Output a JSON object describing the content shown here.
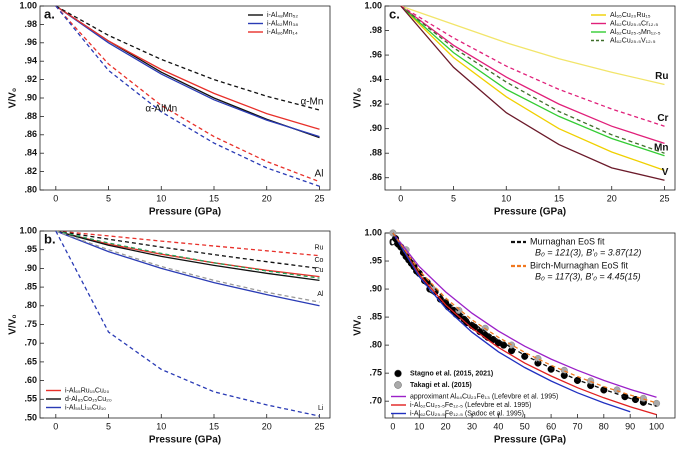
{
  "chart_data": [
    {
      "type": "line",
      "panel": "a.",
      "xlabel": "Pressure (GPa)",
      "ylabel": "V/V₀",
      "legend": "upper right",
      "xlim": [
        -1.5,
        26
      ],
      "ylim": [
        0.8,
        1.0
      ],
      "xticks": [
        0,
        5,
        10,
        15,
        20,
        25
      ],
      "yticks": [
        {
          "value": 0.8,
          "label": ".80"
        },
        {
          "value": 0.82,
          "label": ".82"
        },
        {
          "value": 0.84,
          "label": ".84"
        },
        {
          "value": 0.86,
          "label": ".86"
        },
        {
          "value": 0.88,
          "label": ".88"
        },
        {
          "value": 0.9,
          "label": ".90"
        },
        {
          "value": 0.92,
          "label": ".92"
        },
        {
          "value": 0.94,
          "label": ".94"
        },
        {
          "value": 0.96,
          "label": ".96"
        },
        {
          "value": 0.98,
          "label": ".98"
        },
        {
          "value": 1.0,
          "label": "1.00"
        }
      ],
      "x": [
        0,
        5,
        10,
        15,
        20,
        25
      ],
      "series": [
        {
          "name": "i-Al₄₈Mn₅₂",
          "color": "#111111",
          "line_style": "solid",
          "values": [
            1.0,
            0.962,
            0.928,
            0.9,
            0.877,
            0.857
          ]
        },
        {
          "name": "i-Al₆₂Mn₃₈",
          "color": "#2a3bb5",
          "line_style": "solid",
          "values": [
            1.0,
            0.96,
            0.926,
            0.898,
            0.876,
            0.858
          ]
        },
        {
          "name": "i-Al₈₆Mn₁₄",
          "color": "#e8302a",
          "line_style": "solid",
          "values": [
            1.0,
            0.962,
            0.931,
            0.905,
            0.883,
            0.866
          ]
        },
        {
          "label": "α-Mn",
          "color": "#111111",
          "line_style": "dashed",
          "values": [
            1.0,
            0.968,
            0.942,
            0.92,
            0.902,
            0.887
          ]
        },
        {
          "label": "Al",
          "color": "#e8302a",
          "line_style": "dashed",
          "values": [
            1.0,
            0.937,
            0.892,
            0.858,
            0.831,
            0.809
          ]
        },
        {
          "label": "α-AlMn",
          "color": "#2a3bb5",
          "line_style": "dashed",
          "values": [
            1.0,
            0.93,
            0.885,
            0.851,
            0.824,
            0.804
          ]
        }
      ]
    },
    {
      "type": "line",
      "panel": "b.",
      "xlabel": "Pressure (GPa)",
      "ylabel": "V/V₀",
      "legend": "lower left",
      "xlim": [
        -1.5,
        26
      ],
      "ylim": [
        0.5,
        1.0
      ],
      "xticks": [
        0,
        5,
        10,
        15,
        20,
        25
      ],
      "yticks": [
        {
          "value": 0.5,
          "label": ".50"
        },
        {
          "value": 0.55,
          "label": ".55"
        },
        {
          "value": 0.6,
          "label": ".60"
        },
        {
          "value": 0.65,
          "label": ".65"
        },
        {
          "value": 0.7,
          "label": ".70"
        },
        {
          "value": 0.75,
          "label": ".75"
        },
        {
          "value": 0.8,
          "label": ".80"
        },
        {
          "value": 0.85,
          "label": ".85"
        },
        {
          "value": 0.9,
          "label": ".90"
        },
        {
          "value": 0.95,
          "label": ".95"
        },
        {
          "value": 1.0,
          "label": "1.00"
        }
      ],
      "x": [
        0,
        5,
        10,
        15,
        20,
        25
      ],
      "series": [
        {
          "name": "i-Al₆₅Ru₁₅Cu₂₀",
          "color": "#e8302a",
          "line_style": "solid",
          "values": [
            1.0,
            0.965,
            0.938,
            0.915,
            0.895,
            0.878
          ]
        },
        {
          "name": "d-Al₆₅Co₁₅Cu₂₀",
          "color": "#111111",
          "line_style": "solid",
          "values": [
            1.0,
            0.962,
            0.932,
            0.908,
            0.887,
            0.868
          ]
        },
        {
          "name": "i-Al₅₅Li₃₅Cu₁₀",
          "color": "#2a3bb5",
          "line_style": "solid",
          "values": [
            1.0,
            0.945,
            0.9,
            0.862,
            0.83,
            0.8
          ]
        },
        {
          "label": "Ru",
          "color": "#e8302a",
          "line_style": "dashed",
          "values": [
            1.0,
            0.987,
            0.973,
            0.96,
            0.947,
            0.934
          ]
        },
        {
          "label": "Co",
          "color": "#111111",
          "line_style": "dashed",
          "values": [
            1.0,
            0.978,
            0.957,
            0.937,
            0.918,
            0.9
          ]
        },
        {
          "label": "Cu",
          "color": "#2aa05a",
          "line_style": "dashed",
          "values": [
            1.0,
            0.968,
            0.94,
            0.915,
            0.893,
            0.874
          ]
        },
        {
          "label": "Al",
          "color": "#999999",
          "line_style": "dashed",
          "values": [
            1.0,
            0.95,
            0.905,
            0.868,
            0.836,
            0.81
          ]
        },
        {
          "label": "Li",
          "color": "#2a3bb5",
          "line_style": "dashed",
          "values": [
            1.0,
            0.73,
            0.63,
            0.57,
            0.535,
            0.505
          ]
        }
      ]
    },
    {
      "type": "line",
      "panel": "c.",
      "xlabel": "Pressure (GPa)",
      "ylabel": "V/V₀",
      "legend": "upper right",
      "xlim": [
        -1.5,
        26
      ],
      "ylim": [
        0.85,
        1.0
      ],
      "xticks": [
        0,
        5,
        10,
        15,
        20,
        25
      ],
      "yticks": [
        {
          "value": 0.86,
          "label": ".86"
        },
        {
          "value": 0.88,
          "label": ".88"
        },
        {
          "value": 0.9,
          "label": ".90"
        },
        {
          "value": 0.92,
          "label": ".92"
        },
        {
          "value": 0.94,
          "label": ".94"
        },
        {
          "value": 0.96,
          "label": ".96"
        },
        {
          "value": 0.98,
          "label": ".98"
        },
        {
          "value": 1.0,
          "label": "1.00"
        }
      ],
      "x": [
        0,
        5,
        10,
        15,
        20,
        25
      ],
      "series": [
        {
          "name": "Al₆₅Cu₂₀Ru₁₅",
          "color": "#f0d000",
          "line_style": "solid",
          "values": [
            1.0,
            0.958,
            0.926,
            0.9,
            0.881,
            0.866
          ]
        },
        {
          "name": "Al₆₂Cu₂₅.₅Cr₁₂.₅",
          "color": "#e0207a",
          "line_style": "solid",
          "values": [
            1.0,
            0.968,
            0.942,
            0.92,
            0.902,
            0.888
          ]
        },
        {
          "name": "Al₆₂Cu₂₅.₅Mn₁₂.₅",
          "color": "#33cc33",
          "line_style": "solid",
          "label": "Mn",
          "values": [
            1.0,
            0.962,
            0.932,
            0.91,
            0.892,
            0.878
          ]
        },
        {
          "name": "Al₆₂Cu₂₅.₅V₁₂.₅",
          "color": "#3f6e2a",
          "line_style": "dashed",
          "values": [
            1.0,
            0.966,
            0.938,
            0.914,
            0.895,
            0.88
          ]
        },
        {
          "label": "Ru",
          "color": "#f2e56a",
          "line_style": "solid",
          "values": [
            1.0,
            0.985,
            0.97,
            0.957,
            0.946,
            0.936
          ]
        },
        {
          "label": "Cr",
          "color": "#e0207a",
          "line_style": "dashed",
          "values": [
            1.0,
            0.974,
            0.951,
            0.932,
            0.916,
            0.902
          ]
        },
        {
          "label": "V",
          "color": "#6b1a2a",
          "line_style": "solid",
          "values": [
            1.0,
            0.95,
            0.913,
            0.887,
            0.868,
            0.858
          ]
        }
      ]
    },
    {
      "type": "line",
      "panel": "d.",
      "xlabel": "Pressure (GPa)",
      "ylabel": "V/V₀",
      "legend": "lower left",
      "xlim": [
        -3,
        107
      ],
      "ylim": [
        0.67,
        1.0
      ],
      "xticks": [
        0,
        10,
        20,
        30,
        40,
        50,
        60,
        70,
        80,
        90,
        100
      ],
      "yticks": [
        {
          "value": 0.7,
          "label": ".70"
        },
        {
          "value": 0.75,
          "label": ".75"
        },
        {
          "value": 0.8,
          "label": ".80"
        },
        {
          "value": 0.85,
          "label": ".85"
        },
        {
          "value": 0.9,
          "label": ".90"
        },
        {
          "value": 0.95,
          "label": ".95"
        },
        {
          "value": 1.0,
          "label": "1.00"
        }
      ],
      "x": [
        0,
        10,
        20,
        30,
        40,
        50,
        60,
        70,
        80,
        90,
        100
      ],
      "series": [
        {
          "type": "scatter",
          "name": "Stagno et al. (2015, 2021)",
          "color": "#000000",
          "x": [
            1,
            2,
            3,
            4,
            5,
            6,
            7,
            8,
            9,
            10,
            12,
            13,
            14,
            15,
            16,
            18,
            20,
            21,
            23,
            24,
            25,
            27,
            28,
            30,
            31,
            33,
            35,
            36,
            38,
            40,
            42,
            45,
            50,
            55,
            60,
            65,
            70,
            75,
            80,
            88,
            92,
            95
          ],
          "values": [
            0.99,
            0.98,
            0.975,
            0.965,
            0.958,
            0.952,
            0.946,
            0.94,
            0.932,
            0.928,
            0.915,
            0.912,
            0.9,
            0.898,
            0.895,
            0.882,
            0.875,
            0.868,
            0.862,
            0.855,
            0.852,
            0.846,
            0.84,
            0.835,
            0.832,
            0.824,
            0.818,
            0.814,
            0.81,
            0.804,
            0.8,
            0.79,
            0.78,
            0.768,
            0.757,
            0.746,
            0.737,
            0.728,
            0.72,
            0.708,
            0.703,
            0.698
          ]
        },
        {
          "type": "scatter",
          "name": "Takagi et al. (2015)",
          "color": "#aaaaaa",
          "x": [
            0,
            5,
            15,
            25,
            35,
            45,
            55,
            65,
            75,
            85,
            95,
            100
          ],
          "values": [
            1.0,
            0.97,
            0.9,
            0.862,
            0.83,
            0.8,
            0.776,
            0.755,
            0.736,
            0.72,
            0.705,
            0.696
          ]
        },
        {
          "name": "approximant Al₆₄Cu₂₃Fe₁₃ (Lefevbre et al. 1995)",
          "color": "#9b20c8",
          "line_style": "solid",
          "values": [
            1.0,
            0.94,
            0.895,
            0.857,
            0.825,
            0.798,
            0.775,
            0.755,
            0.737,
            0.721,
            0.707
          ]
        },
        {
          "name": "i-Al₆₂Cu₂₅.₅Fe₁₂.₅ (Lefevbre et al. 1995)",
          "color": "#e02020",
          "line_style": "solid",
          "values": [
            1.0,
            0.926,
            0.872,
            0.83,
            0.796,
            0.768,
            0.745,
            0.724,
            0.706,
            0.69,
            0.676
          ]
        },
        {
          "name": "i-Al₆₂Cu₂₅.₅Fe₁₂.₅ (Sadoc et al. 1995)",
          "color": "#2030c0",
          "line_style": "solid",
          "x": [
            0,
            10,
            20,
            30,
            40,
            50,
            60,
            70,
            80,
            90
          ],
          "values": [
            1.0,
            0.922,
            0.866,
            0.823,
            0.788,
            0.76,
            0.736,
            0.715,
            0.697,
            0.681
          ]
        },
        {
          "name": "Murnaghan EoS fit",
          "note": "B₀ = 121(3), B′₀ = 3.87(12)",
          "legend": "upper right",
          "color": "#111111",
          "line_style": "dashed",
          "values": [
            1.0,
            0.931,
            0.88,
            0.84,
            0.809,
            0.782,
            0.759,
            0.738,
            0.721,
            0.705,
            0.691
          ]
        },
        {
          "name": "Birch-Murnaghan EoS fit",
          "note": "B₀ = 117(3), B′₀ = 4.45(15)",
          "legend": "upper right",
          "color": "#f07820",
          "line_style": "dashed",
          "values": [
            1.0,
            0.933,
            0.884,
            0.845,
            0.814,
            0.787,
            0.764,
            0.744,
            0.726,
            0.711,
            0.697
          ]
        }
      ]
    }
  ]
}
